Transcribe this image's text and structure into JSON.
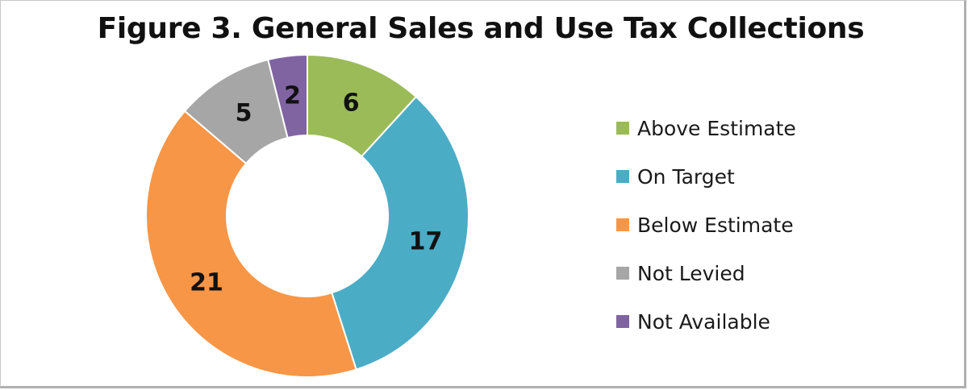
{
  "chart_data": {
    "type": "pie",
    "title": "Figure 3. General Sales and Use Tax Collections",
    "categories": [
      "Above Estimate",
      "On Target",
      "Below Estimate",
      "Not Levied",
      "Not Available"
    ],
    "values": [
      6,
      17,
      21,
      5,
      2
    ],
    "colors": [
      "#9bbb59",
      "#4bacc6",
      "#f79646",
      "#a6a6a6",
      "#8064a2"
    ],
    "donut": true,
    "legend": "right"
  }
}
